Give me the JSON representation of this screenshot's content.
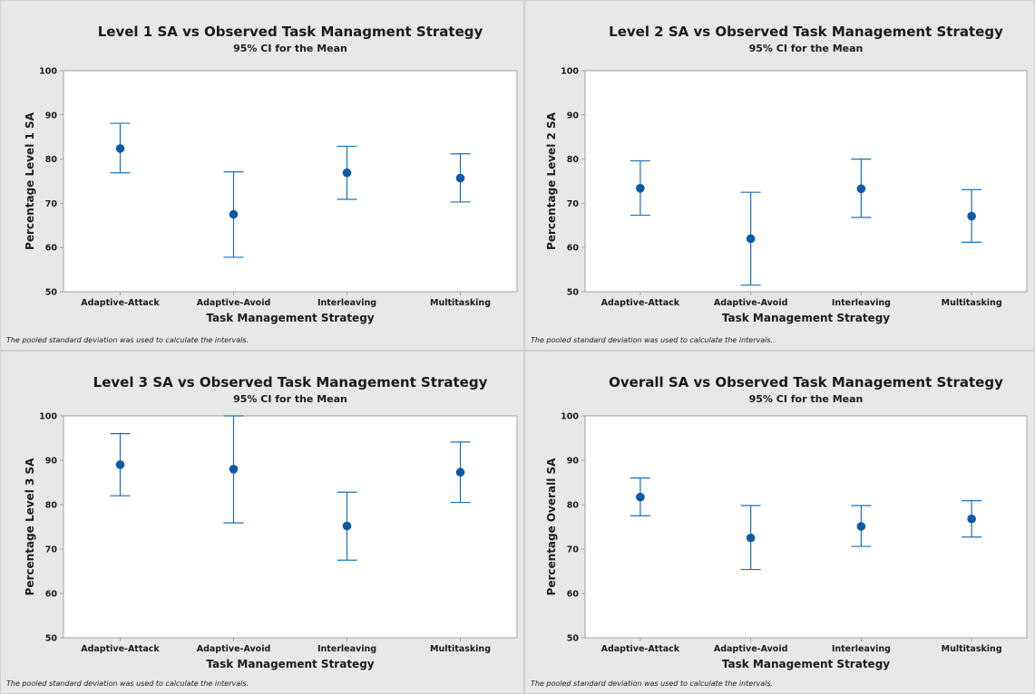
{
  "chart_data": [
    {
      "type": "scatter",
      "title": "Level 1 SA vs Observed Task Managment Strategy",
      "subtitle": "95% CI for the Mean",
      "xlabel": "Task Management Strategy",
      "ylabel": "Percentage Level 1 SA",
      "categories": [
        "Adaptive-Attack",
        "Adaptive-Avoid",
        "Interleaving",
        "Multitasking"
      ],
      "means": [
        82.4,
        67.5,
        76.9,
        75.7
      ],
      "ci_lower": [
        76.9,
        57.8,
        70.9,
        70.3
      ],
      "ci_upper": [
        88.1,
        77.1,
        82.9,
        81.2
      ],
      "ylim": [
        50,
        100
      ],
      "yticks": [
        50,
        60,
        70,
        80,
        90,
        100
      ],
      "footnote": "The pooled standard deviation was used to calculate the intervals.",
      "grid": false
    },
    {
      "type": "scatter",
      "title": "Level 2 SA vs Observed Task Management Strategy",
      "subtitle": "95% CI for the Mean",
      "xlabel": "Task Management Strategy",
      "ylabel": "Percentage Level 2 SA",
      "categories": [
        "Adaptive-Attack",
        "Adaptive-Avoid",
        "Interleaving",
        "Multitasking"
      ],
      "means": [
        73.4,
        62.0,
        73.3,
        67.1
      ],
      "ci_lower": [
        67.3,
        51.5,
        66.8,
        61.2
      ],
      "ci_upper": [
        79.6,
        72.5,
        80.0,
        73.1
      ],
      "ylim": [
        50,
        100
      ],
      "yticks": [
        50,
        60,
        70,
        80,
        90,
        100
      ],
      "footnote": "The pooled standard deviation was used to calculate the intervals.",
      "grid": false
    },
    {
      "type": "scatter",
      "title": "Level 3 SA vs Observed Task Management Strategy",
      "subtitle": "95% CI for the Mean",
      "xlabel": "Task Management Strategy",
      "ylabel": "Percentage Level 3 SA",
      "categories": [
        "Adaptive-Attack",
        "Adaptive-Avoid",
        "Interleaving",
        "Multitasking"
      ],
      "means": [
        89.0,
        88.0,
        75.2,
        87.3
      ],
      "ci_lower": [
        82.0,
        75.9,
        67.5,
        80.5
      ],
      "ci_upper": [
        96.0,
        100.0,
        82.8,
        94.1
      ],
      "ylim": [
        50,
        100
      ],
      "yticks": [
        50,
        60,
        70,
        80,
        90,
        100
      ],
      "footnote": "The pooled standard deviation was used to calculate the intervals.",
      "grid": false
    },
    {
      "type": "scatter",
      "title": "Overall SA vs Observed Task Management Strategy",
      "subtitle": "95% CI for the Mean",
      "xlabel": "Task Management Strategy",
      "ylabel": "Percentage Overall SA",
      "categories": [
        "Adaptive-Attack",
        "Adaptive-Avoid",
        "Interleaving",
        "Multitasking"
      ],
      "means": [
        81.7,
        72.5,
        75.1,
        76.8
      ],
      "ci_lower": [
        77.5,
        65.4,
        70.6,
        72.7
      ],
      "ci_upper": [
        86.0,
        79.8,
        79.8,
        80.9
      ],
      "ylim": [
        50,
        100
      ],
      "yticks": [
        50,
        60,
        70,
        80,
        90,
        100
      ],
      "footnote": "The pooled standard deviation was used to calculate the intervals.",
      "grid": false
    }
  ],
  "colors": {
    "series": "#1f6fb2",
    "marker": "#0a5aa5",
    "panel_bg": "#e8e8e8",
    "plot_bg": "#ffffff",
    "axis": "#a0a0a0"
  }
}
